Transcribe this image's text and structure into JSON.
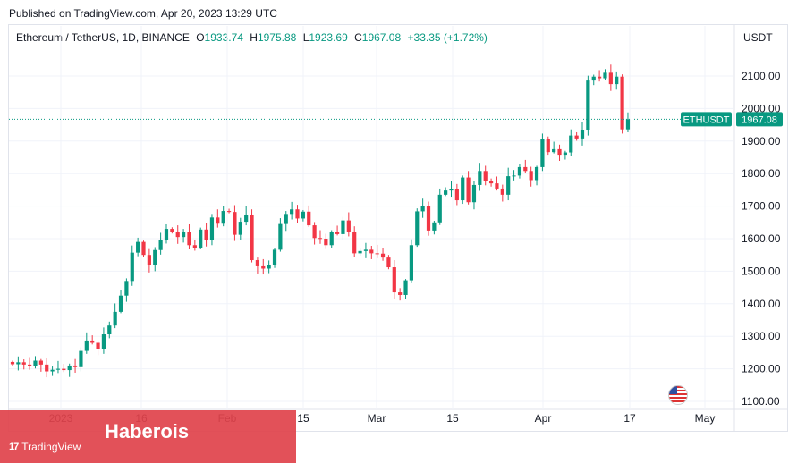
{
  "published": "Published on TradingView.com, Apr 20, 2023 13:29 UTC",
  "legend": {
    "symbol": "Ethereum / TetherUS, 1D, BINANCE",
    "o_label": "O",
    "o": "1933.74",
    "h_label": "H",
    "h": "1975.88",
    "l_label": "L",
    "l": "1923.69",
    "c_label": "C",
    "c": "1967.08",
    "change": "+33.35 (+1.72%)"
  },
  "currency": "USDT",
  "price_tag": {
    "ticker": "ETHUSDT",
    "price": "1967.08"
  },
  "brand": {
    "name": "Haberois",
    "platform": "TradingView"
  },
  "colors": {
    "up": "#089981",
    "down": "#f23645",
    "brand": "#e0424b"
  },
  "chart_data": {
    "type": "candlestick",
    "y_ticks": [
      1100,
      1200,
      1300,
      1400,
      1500,
      1600,
      1700,
      1800,
      1900,
      2000,
      2100
    ],
    "y_tick_labels": [
      "1100.00",
      "1200.00",
      "1300.00",
      "1400.00",
      "1500.00",
      "1600.00",
      "1700.00",
      "1800.00",
      "1900.00",
      "2000.00",
      "2100.00"
    ],
    "ylim": [
      1075,
      2195
    ],
    "x_tick_labels": [
      "2023",
      "16",
      "Feb",
      "15",
      "Mar",
      "15",
      "Apr",
      "17",
      "May"
    ],
    "last_price": 1967.08,
    "closes": [
      1214,
      1220,
      1213,
      1208,
      1225,
      1213,
      1192,
      1197,
      1200,
      1196,
      1210,
      1205,
      1255,
      1287,
      1280,
      1262,
      1306,
      1333,
      1375,
      1425,
      1470,
      1557,
      1590,
      1550,
      1518,
      1565,
      1595,
      1630,
      1622,
      1605,
      1620,
      1580,
      1572,
      1628,
      1596,
      1665,
      1646,
      1685,
      1682,
      1612,
      1652,
      1673,
      1534,
      1515,
      1508,
      1520,
      1566,
      1645,
      1676,
      1690,
      1662,
      1683,
      1641,
      1602,
      1600,
      1580,
      1620,
      1614,
      1656,
      1622,
      1555,
      1562,
      1566,
      1555,
      1554,
      1542,
      1512,
      1435,
      1427,
      1472,
      1580,
      1684,
      1700,
      1625,
      1650,
      1735,
      1748,
      1753,
      1718,
      1788,
      1712,
      1765,
      1808,
      1778,
      1770,
      1754,
      1735,
      1792,
      1794,
      1820,
      1808,
      1780,
      1820,
      1905,
      1866,
      1875,
      1858,
      1865,
      1917,
      1908,
      1935,
      2086,
      2098,
      2093,
      2110,
      2075,
      2098,
      1936,
      1967.08
    ]
  }
}
